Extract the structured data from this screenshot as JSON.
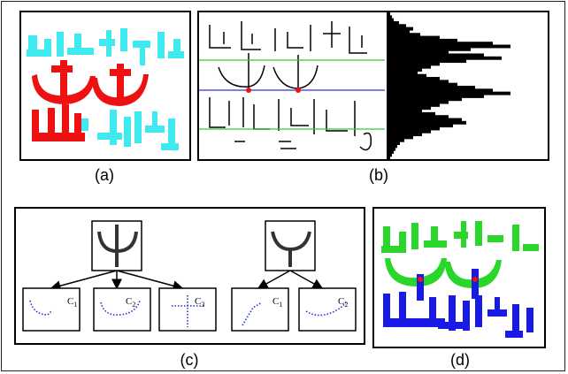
{
  "captions": {
    "a": "(a)",
    "b": "(b)",
    "c": "(c)",
    "d": "(d)"
  },
  "component_labels": {
    "c1": "C",
    "c1_sub": "1",
    "c2": "C",
    "c2_sub": "2",
    "c3": "C",
    "c3_sub": "3"
  },
  "colors": {
    "cyan": "#40e8f0",
    "red": "#ee1111",
    "green": "#2bd62b",
    "blue": "#1a1ae6",
    "baseline_green": "#33cc33",
    "baseline_blue": "#3333dd",
    "dots_blue": "#2233cc"
  },
  "panel_c": {
    "tree_left": {
      "root": "cross-junction",
      "children": 3
    },
    "tree_right": {
      "root": "y-junction",
      "children": 2
    }
  },
  "histogram_profile": [
    4,
    6,
    8,
    14,
    22,
    30,
    26,
    38,
    60,
    80,
    120,
    140,
    95,
    70,
    110,
    130,
    90,
    60,
    50,
    40,
    35,
    45,
    60,
    70,
    80,
    100,
    120,
    140,
    110,
    85,
    70,
    60,
    50,
    40,
    55,
    70,
    85,
    90,
    75,
    60,
    50,
    40,
    30,
    20,
    15,
    12,
    10,
    8,
    6,
    4
  ]
}
